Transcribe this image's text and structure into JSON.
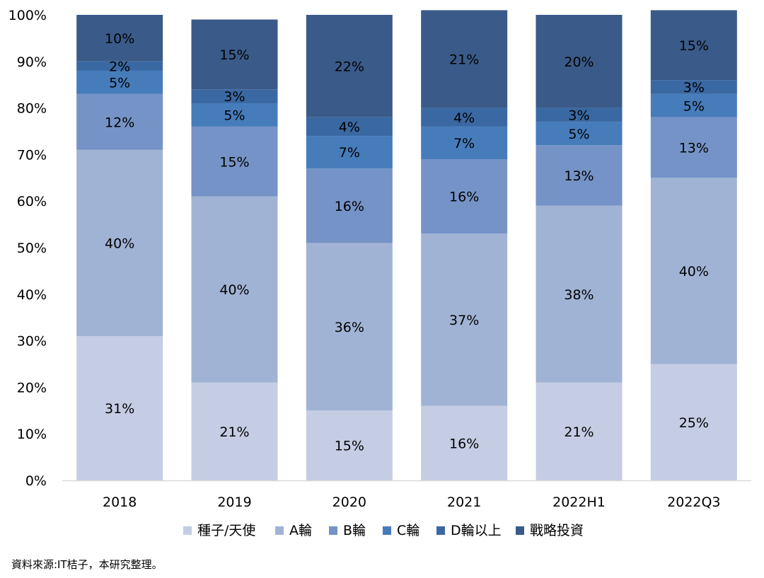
{
  "chart_data": {
    "type": "bar",
    "stacked": true,
    "percent": true,
    "categories": [
      "2018",
      "2019",
      "2020",
      "2021",
      "2022H1",
      "2022Q3"
    ],
    "series": [
      {
        "name": "種子/天使",
        "color": "#c4cde3",
        "values": [
          31,
          21,
          15,
          16,
          21,
          25
        ]
      },
      {
        "name": "A輪",
        "color": "#a1b3d5",
        "values": [
          40,
          40,
          36,
          37,
          38,
          40
        ]
      },
      {
        "name": "B輪",
        "color": "#7593c6",
        "values": [
          12,
          15,
          16,
          16,
          13,
          13
        ]
      },
      {
        "name": "C輪",
        "color": "#477cbb",
        "values": [
          5,
          5,
          7,
          7,
          5,
          5
        ]
      },
      {
        "name": "D輪以上",
        "color": "#3a68a2",
        "values": [
          2,
          3,
          4,
          4,
          3,
          3
        ]
      },
      {
        "name": "戰略投資",
        "color": "#3a5b89",
        "values": [
          10,
          15,
          22,
          21,
          20,
          15
        ]
      }
    ],
    "ylim": [
      0,
      100
    ],
    "yticks": [
      "0%",
      "10%",
      "20%",
      "30%",
      "40%",
      "50%",
      "60%",
      "70%",
      "80%",
      "90%",
      "100%"
    ],
    "grid": false,
    "legend": "bottom"
  },
  "source_note": "資料來源:IT桔子，本研究整理。"
}
